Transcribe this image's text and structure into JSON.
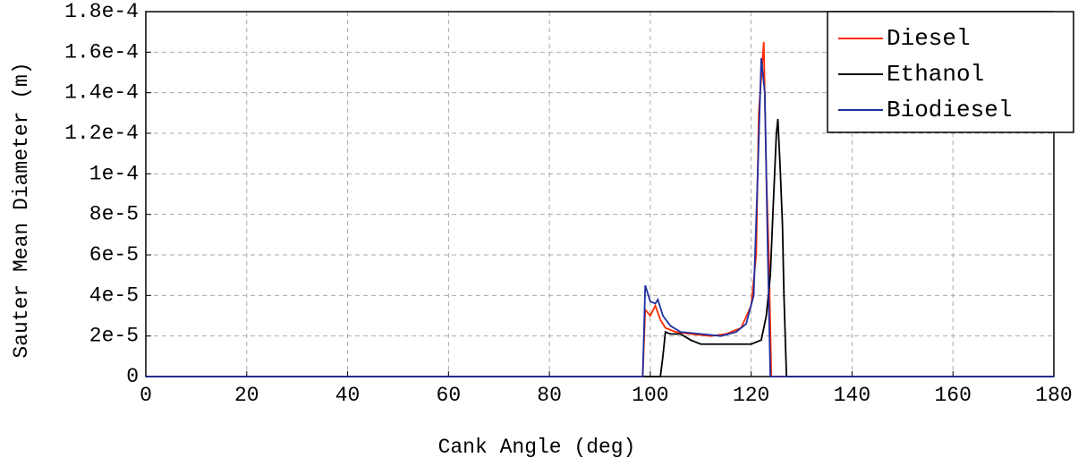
{
  "chart_data": {
    "type": "line",
    "x_label": "Cank Angle (deg)",
    "y_label": "Sauter Mean Diameter (m)",
    "xlim": [
      0,
      180
    ],
    "xticks": [
      0,
      20,
      40,
      60,
      80,
      100,
      120,
      140,
      160,
      180
    ],
    "ylim": [
      0,
      0.00018
    ],
    "yticks": [
      0,
      {
        "value": 2e-05,
        "label": "2e-5"
      },
      {
        "value": 4e-05,
        "label": "4e-5"
      },
      {
        "value": 6e-05,
        "label": "6e-5"
      },
      {
        "value": 8e-05,
        "label": "8e-5"
      },
      {
        "value": 0.0001,
        "label": "1e-4"
      },
      {
        "value": 0.00012,
        "label": "1.2e-4"
      },
      {
        "value": 0.00014,
        "label": "1.4e-4"
      },
      {
        "value": 0.00016,
        "label": "1.6e-4"
      },
      {
        "value": 0.00018,
        "label": "1.8e-4"
      }
    ],
    "grid": true,
    "legend": "upper right",
    "series": [
      {
        "name": "Diesel",
        "color": "#ff2a00",
        "x": [
          0,
          98.5,
          99,
          100,
          101,
          102,
          103,
          105,
          108,
          112,
          115,
          118,
          120,
          121,
          121.5,
          122.5,
          123,
          123.5,
          124,
          180
        ],
        "values": [
          0,
          0,
          3.3e-05,
          3e-05,
          3.5e-05,
          2.8e-05,
          2.4e-05,
          2.2e-05,
          2.1e-05,
          2e-05,
          2.1e-05,
          2.4e-05,
          3.5e-05,
          6e-05,
          0.00013,
          0.000165,
          0.0001,
          6e-05,
          0,
          0
        ]
      },
      {
        "name": "Ethanol",
        "color": "#000000",
        "x": [
          0,
          102,
          102.5,
          103,
          104,
          106,
          108,
          110,
          115,
          120,
          122,
          123,
          123.8,
          124.3,
          125,
          125.3,
          125.8,
          126.2,
          126.5,
          127,
          180
        ],
        "values": [
          0,
          0,
          1e-05,
          2.2e-05,
          2.1e-05,
          2.1e-05,
          1.8e-05,
          1.6e-05,
          1.6e-05,
          1.6e-05,
          1.8e-05,
          3e-05,
          5e-05,
          8e-05,
          0.00012,
          0.000127,
          0.0001,
          7.5e-05,
          4e-05,
          0,
          0
        ]
      },
      {
        "name": "Biodiesel",
        "color": "#1f2fa0",
        "x": [
          0,
          98.5,
          99,
          100,
          101,
          101.5,
          102.5,
          104,
          106,
          110,
          114,
          117,
          119,
          120.5,
          121.3,
          122,
          122.7,
          123.3,
          123.8,
          180
        ],
        "values": [
          0,
          0,
          4.5e-05,
          3.7e-05,
          3.6e-05,
          3.8e-05,
          3e-05,
          2.5e-05,
          2.2e-05,
          2.1e-05,
          2e-05,
          2.2e-05,
          2.6e-05,
          4e-05,
          0.0001,
          0.000157,
          0.00014,
          6e-05,
          0,
          0
        ]
      }
    ]
  }
}
